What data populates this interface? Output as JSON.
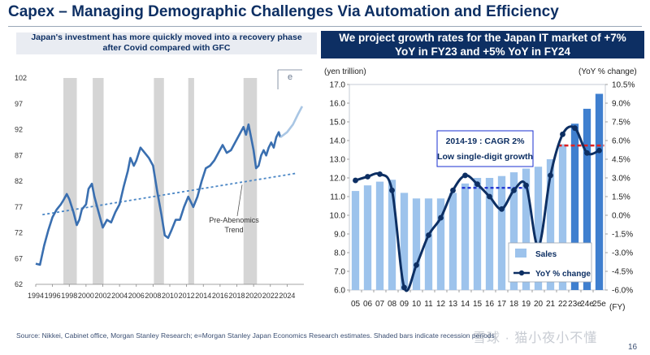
{
  "page": {
    "title": "Capex – Managing Demographic Challenges Via Automation and Efficiency",
    "footer": "Source: Nikkei, Cabinet office, Morgan Stanley Research; e=Morgan Stanley Japan Economics Research estimates. Shaded bars indicate recession periods",
    "page_number": "16",
    "watermark": "雪球 · 猫小夜小不懂"
  },
  "left": {
    "subtitle_line1": "Japan's investment has more quickly moved into a recovery phase",
    "subtitle_line2": "after Covid compared with GFC",
    "annotation": "e",
    "trend_label_line1": "Pre-Abenomics",
    "trend_label_line2": "Trend"
  },
  "right": {
    "subtitle_line1": "We project growth rates for the Japan IT market of +7%",
    "subtitle_line2": "YoY in FY23 and +5% YoY in FY24",
    "left_unit": "(yen trillion)",
    "right_unit": "(YoY % change)",
    "x_unit": "(FY)",
    "cagr_line1": "2014-19 : CAGR 2%",
    "cagr_line2": "Low single-digit growth"
  },
  "colors": {
    "navy": "#0d2f63",
    "series_blue": "#3a6fb0",
    "light_bar": "#9dc3ec",
    "dark_bar": "#3f7fcf",
    "forecast": "#a9c6e4",
    "recession_shade": "#d5d5d5",
    "trend_blue": "#4a86c5",
    "red_dash": "#e02020",
    "blue_dash": "#1a2fd0"
  },
  "chart_data": [
    {
      "type": "line",
      "x_start": 1994,
      "x_end": 2026,
      "xticks": [
        "1994",
        "1996",
        "1998",
        "2000",
        "2002",
        "2004",
        "2006",
        "2008",
        "2010",
        "2012",
        "2014",
        "2016",
        "2018",
        "2020",
        "2022",
        "2024"
      ],
      "yticks": [
        "62",
        "67",
        "72",
        "77",
        "82",
        "87",
        "92",
        "97",
        "102"
      ],
      "ylim": [
        62,
        102
      ],
      "grid": false,
      "recessions": [
        [
          1997.3,
          1998.9
        ],
        [
          2000.8,
          2002.1
        ],
        [
          2008.1,
          2009.3
        ],
        [
          2012.2,
          2012.9
        ],
        [
          2018.8,
          2020.4
        ]
      ],
      "series": [
        {
          "values": [
            [
              1994.0,
              66.0
            ],
            [
              1994.5,
              65.8
            ],
            [
              1995.0,
              69.5
            ],
            [
              1995.5,
              72.5
            ],
            [
              1996.0,
              75.0
            ],
            [
              1996.5,
              76.5
            ],
            [
              1997.0,
              77.5
            ],
            [
              1997.3,
              78.3
            ],
            [
              1997.7,
              79.5
            ],
            [
              1998.0,
              78.5
            ],
            [
              1998.5,
              76.0
            ],
            [
              1998.9,
              73.5
            ],
            [
              1999.2,
              74.5
            ],
            [
              1999.5,
              76.5
            ],
            [
              2000.0,
              77.5
            ],
            [
              2000.3,
              80.5
            ],
            [
              2000.7,
              81.5
            ],
            [
              2001.0,
              79.0
            ],
            [
              2001.5,
              76.0
            ],
            [
              2002.0,
              73.0
            ],
            [
              2002.5,
              74.5
            ],
            [
              2003.0,
              74.0
            ],
            [
              2003.5,
              76.0
            ],
            [
              2004.0,
              77.5
            ],
            [
              2004.5,
              81.0
            ],
            [
              2005.0,
              84.0
            ],
            [
              2005.3,
              86.5
            ],
            [
              2005.7,
              85.0
            ],
            [
              2006.0,
              86.0
            ],
            [
              2006.5,
              88.5
            ],
            [
              2007.0,
              87.5
            ],
            [
              2007.5,
              86.5
            ],
            [
              2008.0,
              85.0
            ],
            [
              2008.5,
              80.0
            ],
            [
              2009.0,
              75.5
            ],
            [
              2009.4,
              71.5
            ],
            [
              2009.8,
              71.0
            ],
            [
              2010.2,
              72.5
            ],
            [
              2010.7,
              74.5
            ],
            [
              2011.2,
              74.5
            ],
            [
              2011.7,
              77.0
            ],
            [
              2012.2,
              79.0
            ],
            [
              2012.8,
              77.0
            ],
            [
              2013.3,
              79.0
            ],
            [
              2013.8,
              82.0
            ],
            [
              2014.3,
              84.5
            ],
            [
              2014.8,
              85.0
            ],
            [
              2015.3,
              86.0
            ],
            [
              2015.8,
              87.5
            ],
            [
              2016.3,
              89.0
            ],
            [
              2016.8,
              87.5
            ],
            [
              2017.3,
              88.0
            ],
            [
              2017.8,
              89.5
            ],
            [
              2018.3,
              91.0
            ],
            [
              2018.8,
              92.5
            ],
            [
              2019.1,
              91.0
            ],
            [
              2019.4,
              93.0
            ],
            [
              2019.7,
              90.5
            ],
            [
              2020.0,
              88.0
            ],
            [
              2020.3,
              84.5
            ],
            [
              2020.6,
              85.0
            ],
            [
              2020.9,
              87.0
            ],
            [
              2021.2,
              88.0
            ],
            [
              2021.5,
              87.0
            ],
            [
              2021.8,
              88.5
            ],
            [
              2022.1,
              89.5
            ],
            [
              2022.4,
              88.5
            ],
            [
              2022.7,
              90.5
            ],
            [
              2023.0,
              91.5
            ],
            [
              2023.2,
              90.5
            ]
          ]
        },
        {
          "name": "e",
          "values": [
            [
              2023.2,
              90.5
            ],
            [
              2024.0,
              91.5
            ],
            [
              2024.7,
              93.0
            ],
            [
              2025.3,
              95.0
            ],
            [
              2025.8,
              96.5
            ]
          ]
        }
      ],
      "trend_line": [
        [
          1994.8,
          75.5
        ],
        [
          2025.0,
          83.5
        ]
      ]
    },
    {
      "type": "bar",
      "categories": [
        "05",
        "06",
        "07",
        "08",
        "09",
        "10",
        "11",
        "12",
        "13",
        "14",
        "15",
        "16",
        "17",
        "18",
        "19",
        "20",
        "21",
        "22",
        "23e",
        "24e",
        "25e"
      ],
      "series": [
        {
          "name": "Sales",
          "values": [
            11.3,
            11.6,
            11.8,
            11.9,
            11.2,
            10.9,
            10.9,
            10.9,
            11.2,
            11.7,
            12.0,
            12.0,
            12.1,
            12.3,
            12.5,
            12.6,
            13.0,
            13.8,
            14.9,
            15.7,
            16.5
          ]
        },
        {
          "name": "YoY % change",
          "values": [
            2.8,
            3.1,
            3.3,
            2.0,
            -5.8,
            -4.0,
            -1.6,
            -0.2,
            2.0,
            3.2,
            2.5,
            1.5,
            0.5,
            2.0,
            2.4,
            -2.5,
            3.2,
            6.5,
            7.0,
            5.0,
            5.2
          ]
        }
      ],
      "forecast_from_index": 18,
      "ylim": [
        6.0,
        17.0
      ],
      "yticks": [
        "6.0",
        "7.0",
        "8.0",
        "9.0",
        "10.0",
        "11.0",
        "12.0",
        "13.0",
        "14.0",
        "15.0",
        "16.0",
        "17.0"
      ],
      "y2lim": [
        -6.0,
        10.5
      ],
      "y2ticks": [
        "-6.0%",
        "-4.5%",
        "-3.0%",
        "-1.5%",
        "0.0%",
        "1.5%",
        "3.0%",
        "4.5%",
        "6.0%",
        "7.5%",
        "9.0%",
        "10.5%"
      ],
      "grid": false,
      "legend": "bottom-right",
      "dashed_levels": [
        {
          "from": "14",
          "to": "19",
          "y2": 2.2
        },
        {
          "from": "22",
          "to": "25e",
          "y2": 5.6
        }
      ]
    }
  ]
}
